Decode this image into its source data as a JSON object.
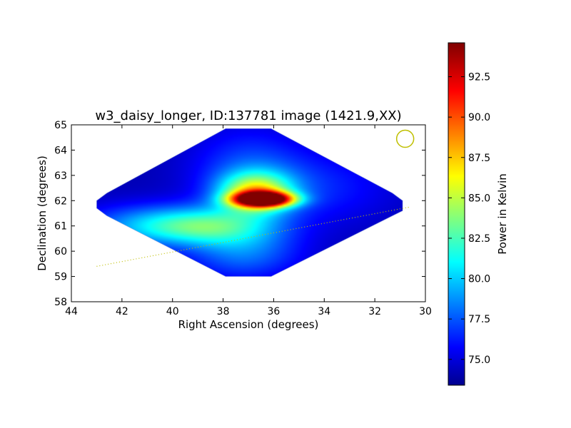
{
  "chart_data": {
    "type": "heatmap",
    "title": "w3_daisy_longer, ID:137781 image (1421.9,XX)",
    "xlabel": "Right Ascension (degrees)",
    "ylabel": "Declination (degrees)",
    "xlim": [
      44,
      30
    ],
    "ylim": [
      58,
      65
    ],
    "x_ticks": [
      44,
      42,
      40,
      38,
      36,
      34,
      32,
      30
    ],
    "x_tick_labels": [
      "44",
      "42",
      "40",
      "38",
      "36",
      "34",
      "32",
      "30"
    ],
    "y_ticks": [
      58,
      59,
      60,
      61,
      62,
      63,
      64,
      65
    ],
    "y_tick_labels": [
      "58",
      "59",
      "60",
      "61",
      "62",
      "63",
      "64",
      "65"
    ],
    "grid": false,
    "colorbar": {
      "label": "Power in Kelvin",
      "range": [
        73.4,
        94.6
      ],
      "ticks": [
        75.0,
        77.5,
        80.0,
        82.5,
        85.0,
        87.5,
        90.0,
        92.5
      ],
      "tick_labels": [
        "75.0",
        "77.5",
        "80.0",
        "82.5",
        "85.0",
        "87.5",
        "90.0",
        "92.5"
      ],
      "colormap": "jet"
    },
    "map_outline_radec": [
      [
        43.0,
        62.0
      ],
      [
        42.6,
        62.3
      ],
      [
        37.9,
        64.85
      ],
      [
        36.1,
        64.85
      ],
      [
        31.3,
        62.3
      ],
      [
        30.9,
        62.0
      ],
      [
        30.9,
        61.6
      ],
      [
        31.3,
        61.4
      ],
      [
        36.1,
        59.0
      ],
      [
        37.9,
        59.0
      ],
      [
        42.6,
        61.4
      ],
      [
        43.0,
        61.7
      ]
    ],
    "background_level": 74.5,
    "emission_components": [
      {
        "ra": 36.4,
        "dec": 62.05,
        "peak": 20.5,
        "sigma_ra": 0.8,
        "sigma_dec": 0.2
      },
      {
        "ra": 36.7,
        "dec": 62.3,
        "peak": 10.5,
        "sigma_ra": 1.0,
        "sigma_dec": 0.55
      },
      {
        "ra": 38.7,
        "dec": 61.0,
        "peak": 6.0,
        "sigma_ra": 1.8,
        "sigma_dec": 0.5
      },
      {
        "ra": 41.0,
        "dec": 61.0,
        "peak": 4.0,
        "sigma_ra": 2.0,
        "sigma_dec": 0.6
      },
      {
        "ra": 37.0,
        "dec": 63.2,
        "peak": 3.0,
        "sigma_ra": 1.6,
        "sigma_dec": 1.2
      },
      {
        "ra": 37.2,
        "dec": 60.0,
        "peak": 4.0,
        "sigma_ra": 1.6,
        "sigma_dec": 0.8
      },
      {
        "ra": 34.0,
        "dec": 62.5,
        "peak": 2.0,
        "sigma_ra": 2.0,
        "sigma_dec": 1.0
      }
    ],
    "galactic_plane_line": {
      "color": "#bfbf00",
      "style": "dotted",
      "points": [
        [
          43.0,
          59.4
        ],
        [
          30.6,
          61.75
        ]
      ]
    },
    "beam_marker": {
      "ra": 30.8,
      "dec": 64.45,
      "color": "#bfbf00"
    }
  }
}
